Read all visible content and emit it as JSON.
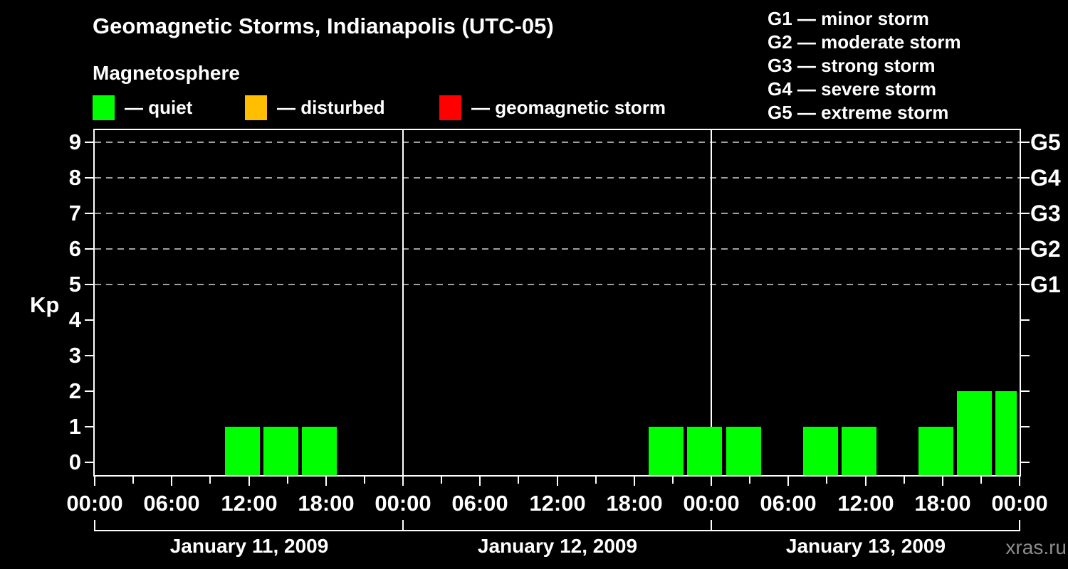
{
  "watermark": "xras.ru",
  "chart_data": {
    "type": "bar",
    "title": "Geomagnetic Storms, Indianapolis (UTC-05)",
    "subtitle": "Magnetosphere",
    "ylabel": "Kp",
    "ylim": [
      0,
      9
    ],
    "yticks": [
      0,
      1,
      2,
      3,
      4,
      5,
      6,
      7,
      8,
      9
    ],
    "grid": "horizontal dashed lines at Kp 5-9 only",
    "legend_position": "top",
    "condition_legend": [
      {
        "label": "— quiet",
        "color": "#00ff00"
      },
      {
        "label": "— disturbed",
        "color": "#ffbe00"
      },
      {
        "label": "— geomagnetic storm",
        "color": "#ff0000"
      }
    ],
    "storm_scale_legend": [
      "G1 — minor storm",
      "G2 — moderate storm",
      "G3 — strong storm",
      "G4 — severe storm",
      "G5 — extreme storm"
    ],
    "right_axis_ticks": [
      {
        "kp": 5,
        "label": "G1"
      },
      {
        "kp": 6,
        "label": "G2"
      },
      {
        "kp": 7,
        "label": "G3"
      },
      {
        "kp": 8,
        "label": "G4"
      },
      {
        "kp": 9,
        "label": "G5"
      }
    ],
    "x_tick_label_cycle": [
      "00:00",
      "06:00",
      "12:00",
      "18:00"
    ],
    "interval_hours": 3,
    "interval_start_hours_local": [
      1,
      4,
      7,
      10,
      13,
      16,
      19,
      22
    ],
    "days": [
      {
        "date": "January 11, 2009",
        "kp_values": [
          0,
          0,
          0,
          1,
          1,
          1,
          0,
          0
        ]
      },
      {
        "date": "January 12, 2009",
        "kp_values": [
          0,
          0,
          0,
          0,
          0,
          0,
          1,
          1
        ]
      },
      {
        "date": "January 13, 2009",
        "kp_values": [
          1,
          0,
          1,
          1,
          0,
          1,
          2,
          2
        ]
      }
    ],
    "bar_color_rules": [
      {
        "max_kp": 3,
        "color": "#00ff00",
        "meaning": "quiet"
      },
      {
        "max_kp": 4,
        "color": "#ffbe00",
        "meaning": "disturbed"
      },
      {
        "max_kp": 9,
        "color": "#ff0000",
        "meaning": "geomagnetic storm"
      }
    ]
  }
}
